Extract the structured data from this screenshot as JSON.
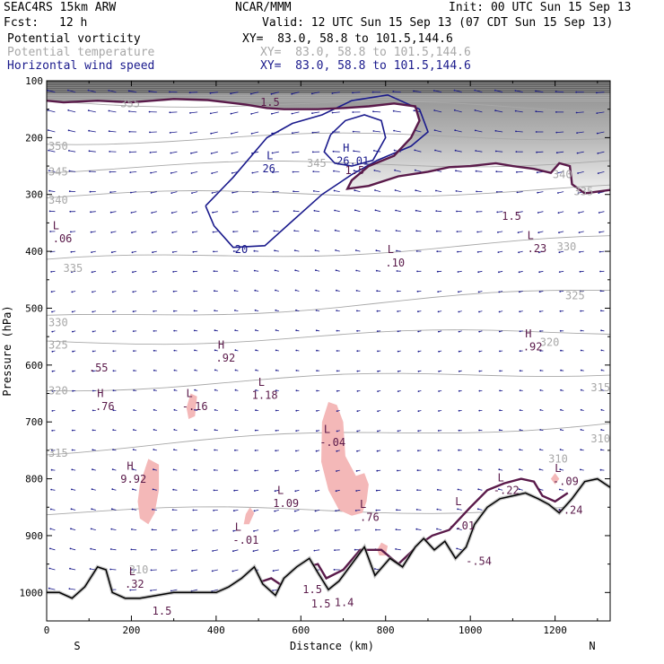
{
  "header": {
    "model": "SEAC4RS 15km ARW",
    "institution": "NCAR/MMM",
    "init": "Init: 00 UTC Sun 15 Sep 13",
    "fcst_label": "Fcst:",
    "fcst_value": "12 h",
    "valid": "Valid: 12 UTC Sun 15 Sep 13 (07 CDT Sun 15 Sep 13)"
  },
  "fields": [
    {
      "name": "Potential vorticity",
      "xy": "XY=  83.0, 58.8 to 101.5,144.6",
      "color": "#000000"
    },
    {
      "name": "Potential temperature",
      "xy": "XY=  83.0, 58.8 to 101.5,144.6",
      "color": "#a8a8a8"
    },
    {
      "name": "Horizontal wind speed",
      "xy": "XY=  83.0, 58.8 to 101.5,144.6",
      "color": "#1a1a8c"
    }
  ],
  "chart_data": {
    "type": "cross-section",
    "xlabel": "Distance (km)",
    "ylabel": "Pressure (hPa)",
    "xlim": [
      0,
      1330
    ],
    "ylim": [
      1050,
      100
    ],
    "x_ticks": [
      0,
      200,
      400,
      600,
      800,
      1000,
      1200
    ],
    "y_ticks": [
      100,
      200,
      300,
      400,
      500,
      600,
      700,
      800,
      900,
      1000
    ],
    "x_end_labels": {
      "left": "S",
      "right": "N"
    },
    "colors": {
      "theta": "#a8a8a8",
      "pv_contour": "#5a1a4a",
      "wind": "#1a1a8c",
      "highlight": "#f4b8b8",
      "terrain": "#000000"
    },
    "theta_labels": [
      {
        "x": 170,
        "p": 140,
        "text": "355"
      },
      {
        "x": 0,
        "p": 215,
        "text": "350"
      },
      {
        "x": 0,
        "p": 260,
        "text": "345"
      },
      {
        "x": 0,
        "p": 310,
        "text": "340"
      },
      {
        "x": 35,
        "p": 430,
        "text": "335"
      },
      {
        "x": 610,
        "p": 245,
        "text": "345"
      },
      {
        "x": 1190,
        "p": 265,
        "text": "340"
      },
      {
        "x": 1240,
        "p": 295,
        "text": "335"
      },
      {
        "x": 1200,
        "p": 392,
        "text": "330"
      },
      {
        "x": 1220,
        "p": 478,
        "text": "325"
      },
      {
        "x": 0,
        "p": 525,
        "text": "330"
      },
      {
        "x": 0,
        "p": 565,
        "text": "325"
      },
      {
        "x": 0,
        "p": 645,
        "text": "320"
      },
      {
        "x": 1160,
        "p": 560,
        "text": "320"
      },
      {
        "x": 1280,
        "p": 640,
        "text": "315"
      },
      {
        "x": 0,
        "p": 755,
        "text": "315"
      },
      {
        "x": 1280,
        "p": 730,
        "text": "310"
      },
      {
        "x": 1180,
        "p": 765,
        "text": "310"
      },
      {
        "x": 190,
        "p": 960,
        "text": "310"
      }
    ],
    "pv_labels": [
      {
        "x": 10,
        "p": 355,
        "text": "L"
      },
      {
        "x": 10,
        "p": 378,
        "text": ".06"
      },
      {
        "x": 1130,
        "p": 372,
        "text": "L"
      },
      {
        "x": 1130,
        "p": 395,
        "text": ".23"
      },
      {
        "x": 800,
        "p": 397,
        "text": "L"
      },
      {
        "x": 795,
        "p": 420,
        "text": ".10"
      },
      {
        "x": 400,
        "p": 565,
        "text": "H"
      },
      {
        "x": 395,
        "p": 588,
        "text": ".92"
      },
      {
        "x": 1125,
        "p": 545,
        "text": "H"
      },
      {
        "x": 1120,
        "p": 568,
        "text": ".92"
      },
      {
        "x": 95,
        "p": 605,
        "text": ".55"
      },
      {
        "x": 115,
        "p": 650,
        "text": "H"
      },
      {
        "x": 110,
        "p": 673,
        "text": ".76"
      },
      {
        "x": 325,
        "p": 650,
        "text": "L"
      },
      {
        "x": 315,
        "p": 673,
        "text": "-.16"
      },
      {
        "x": 495,
        "p": 630,
        "text": "L"
      },
      {
        "x": 480,
        "p": 653,
        "text": "1.18"
      },
      {
        "x": 650,
        "p": 713,
        "text": "L"
      },
      {
        "x": 640,
        "p": 736,
        "text": "-.04"
      },
      {
        "x": 185,
        "p": 778,
        "text": "H"
      },
      {
        "x": 170,
        "p": 801,
        "text": "9.92"
      },
      {
        "x": 540,
        "p": 820,
        "text": "L"
      },
      {
        "x": 530,
        "p": 843,
        "text": "1.09"
      },
      {
        "x": 735,
        "p": 845,
        "text": "L"
      },
      {
        "x": 735,
        "p": 868,
        "text": ".76"
      },
      {
        "x": 440,
        "p": 885,
        "text": "L"
      },
      {
        "x": 435,
        "p": 908,
        "text": "-.01"
      },
      {
        "x": 1060,
        "p": 798,
        "text": "L"
      },
      {
        "x": 1050,
        "p": 820,
        "text": "-.22"
      },
      {
        "x": 1195,
        "p": 782,
        "text": "L"
      },
      {
        "x": 1190,
        "p": 805,
        "text": "-.09"
      },
      {
        "x": 1200,
        "p": 855,
        "text": "-.24"
      },
      {
        "x": 960,
        "p": 840,
        "text": "L"
      },
      {
        "x": 945,
        "p": 883,
        "text": "-.01"
      },
      {
        "x": 985,
        "p": 945,
        "text": "-.54"
      },
      {
        "x": 190,
        "p": 963,
        "text": "L"
      },
      {
        "x": 180,
        "p": 985,
        "text": ".32"
      },
      {
        "x": 245,
        "p": 1033,
        "text": "1.5"
      },
      {
        "x": 600,
        "p": 995,
        "text": "1.5"
      },
      {
        "x": 620,
        "p": 1020,
        "text": "1.5"
      },
      {
        "x": 675,
        "p": 1018,
        "text": "1.4"
      },
      {
        "x": 500,
        "p": 138,
        "text": "1.5"
      },
      {
        "x": 700,
        "p": 258,
        "text": "1.5"
      },
      {
        "x": 1070,
        "p": 338,
        "text": "1.5"
      }
    ],
    "wind_labels": [
      {
        "x": 515,
        "p": 232,
        "text": "L"
      },
      {
        "x": 505,
        "p": 255,
        "text": "26"
      },
      {
        "x": 695,
        "p": 218,
        "text": "H"
      },
      {
        "x": 680,
        "p": 241,
        "text": "26.01"
      },
      {
        "x": 440,
        "p": 397,
        "text": "20"
      }
    ],
    "wind_contours": [
      {
        "label": "20",
        "points": [
          [
            375,
            320
          ],
          [
            440,
            270
          ],
          [
            520,
            200
          ],
          [
            580,
            175
          ],
          [
            650,
            160
          ],
          [
            720,
            135
          ],
          [
            805,
            125
          ],
          [
            880,
            150
          ],
          [
            900,
            190
          ],
          [
            860,
            215
          ],
          [
            780,
            240
          ],
          [
            720,
            265
          ],
          [
            650,
            300
          ],
          [
            575,
            350
          ],
          [
            515,
            390
          ],
          [
            440,
            393
          ],
          [
            395,
            355
          ],
          [
            375,
            320
          ]
        ]
      },
      {
        "label": "26",
        "points": [
          [
            670,
            195
          ],
          [
            705,
            170
          ],
          [
            750,
            160
          ],
          [
            790,
            170
          ],
          [
            800,
            200
          ],
          [
            770,
            240
          ],
          [
            720,
            250
          ],
          [
            680,
            245
          ],
          [
            655,
            225
          ],
          [
            670,
            195
          ]
        ]
      }
    ],
    "pv_contours": [
      {
        "label": "1.5",
        "points": [
          [
            0,
            135
          ],
          [
            40,
            138
          ],
          [
            120,
            135
          ],
          [
            200,
            138
          ],
          [
            300,
            132
          ],
          [
            380,
            134
          ],
          [
            470,
            142
          ],
          [
            520,
            148
          ],
          [
            560,
            150
          ],
          [
            600,
            150
          ],
          [
            640,
            150
          ],
          [
            700,
            148
          ],
          [
            760,
            145
          ],
          [
            820,
            140
          ],
          [
            870,
            145
          ],
          [
            880,
            170
          ],
          [
            860,
            200
          ],
          [
            820,
            232
          ],
          [
            760,
            250
          ],
          [
            720,
            275
          ],
          [
            710,
            290
          ],
          [
            760,
            285
          ],
          [
            830,
            268
          ],
          [
            900,
            260
          ],
          [
            950,
            252
          ],
          [
            1000,
            250
          ],
          [
            1060,
            245
          ],
          [
            1100,
            250
          ],
          [
            1150,
            255
          ],
          [
            1190,
            262
          ],
          [
            1210,
            245
          ],
          [
            1235,
            250
          ],
          [
            1240,
            282
          ],
          [
            1270,
            298
          ],
          [
            1330,
            292
          ]
        ]
      },
      {
        "label": "1.5",
        "points": [
          [
            0,
            1038
          ],
          [
            60,
            1038
          ],
          [
            100,
            1000
          ],
          [
            150,
            1000
          ],
          [
            200,
            1038
          ],
          [
            260,
            1038
          ],
          [
            300,
            1028
          ],
          [
            360,
            1025
          ],
          [
            420,
            1018
          ],
          [
            470,
            990
          ],
          [
            530,
            975
          ],
          [
            560,
            990
          ],
          [
            590,
            960
          ],
          [
            640,
            950
          ],
          [
            660,
            975
          ],
          [
            700,
            960
          ],
          [
            740,
            925
          ],
          [
            790,
            925
          ],
          [
            830,
            950
          ],
          [
            880,
            915
          ],
          [
            910,
            900
          ],
          [
            950,
            890
          ],
          [
            1000,
            850
          ],
          [
            1040,
            820
          ],
          [
            1080,
            808
          ],
          [
            1120,
            800
          ],
          [
            1150,
            805
          ],
          [
            1170,
            830
          ],
          [
            1200,
            840
          ],
          [
            1230,
            825
          ]
        ]
      }
    ],
    "highlights": [
      [
        [
          220,
          810
        ],
        [
          240,
          765
        ],
        [
          265,
          775
        ],
        [
          265,
          820
        ],
        [
          255,
          860
        ],
        [
          240,
          880
        ],
        [
          220,
          870
        ],
        [
          215,
          840
        ],
        [
          220,
          810
        ]
      ],
      [
        [
          330,
          675
        ],
        [
          340,
          650
        ],
        [
          355,
          655
        ],
        [
          350,
          690
        ],
        [
          335,
          695
        ],
        [
          330,
          675
        ]
      ],
      [
        [
          650,
          700
        ],
        [
          665,
          665
        ],
        [
          685,
          670
        ],
        [
          700,
          700
        ],
        [
          705,
          760
        ],
        [
          730,
          795
        ],
        [
          750,
          790
        ],
        [
          760,
          810
        ],
        [
          755,
          840
        ],
        [
          745,
          860
        ],
        [
          720,
          865
        ],
        [
          690,
          855
        ],
        [
          665,
          820
        ],
        [
          648,
          770
        ],
        [
          650,
          700
        ]
      ],
      [
        [
          470,
          862
        ],
        [
          480,
          850
        ],
        [
          490,
          860
        ],
        [
          478,
          880
        ],
        [
          465,
          880
        ],
        [
          470,
          862
        ]
      ],
      [
        [
          1190,
          800
        ],
        [
          1200,
          790
        ],
        [
          1210,
          800
        ],
        [
          1200,
          810
        ],
        [
          1190,
          800
        ]
      ],
      [
        [
          780,
          925
        ],
        [
          790,
          912
        ],
        [
          805,
          918
        ],
        [
          800,
          935
        ],
        [
          785,
          935
        ],
        [
          780,
          925
        ]
      ]
    ],
    "terrain_surface": [
      [
        0,
        1000
      ],
      [
        30,
        1000
      ],
      [
        60,
        1010
      ],
      [
        90,
        990
      ],
      [
        120,
        955
      ],
      [
        140,
        960
      ],
      [
        155,
        1000
      ],
      [
        185,
        1010
      ],
      [
        220,
        1010
      ],
      [
        260,
        1005
      ],
      [
        300,
        1000
      ],
      [
        350,
        1000
      ],
      [
        400,
        1000
      ],
      [
        430,
        990
      ],
      [
        460,
        975
      ],
      [
        490,
        955
      ],
      [
        510,
        985
      ],
      [
        540,
        1005
      ],
      [
        560,
        975
      ],
      [
        590,
        955
      ],
      [
        620,
        940
      ],
      [
        640,
        965
      ],
      [
        665,
        995
      ],
      [
        690,
        980
      ],
      [
        720,
        950
      ],
      [
        750,
        920
      ],
      [
        775,
        970
      ],
      [
        810,
        940
      ],
      [
        840,
        955
      ],
      [
        870,
        920
      ],
      [
        890,
        905
      ],
      [
        915,
        925
      ],
      [
        940,
        910
      ],
      [
        965,
        940
      ],
      [
        990,
        920
      ],
      [
        1010,
        880
      ],
      [
        1040,
        850
      ],
      [
        1070,
        835
      ],
      [
        1100,
        830
      ],
      [
        1130,
        825
      ],
      [
        1160,
        835
      ],
      [
        1185,
        845
      ],
      [
        1210,
        860
      ],
      [
        1240,
        835
      ],
      [
        1270,
        805
      ],
      [
        1300,
        800
      ],
      [
        1330,
        815
      ]
    ]
  }
}
